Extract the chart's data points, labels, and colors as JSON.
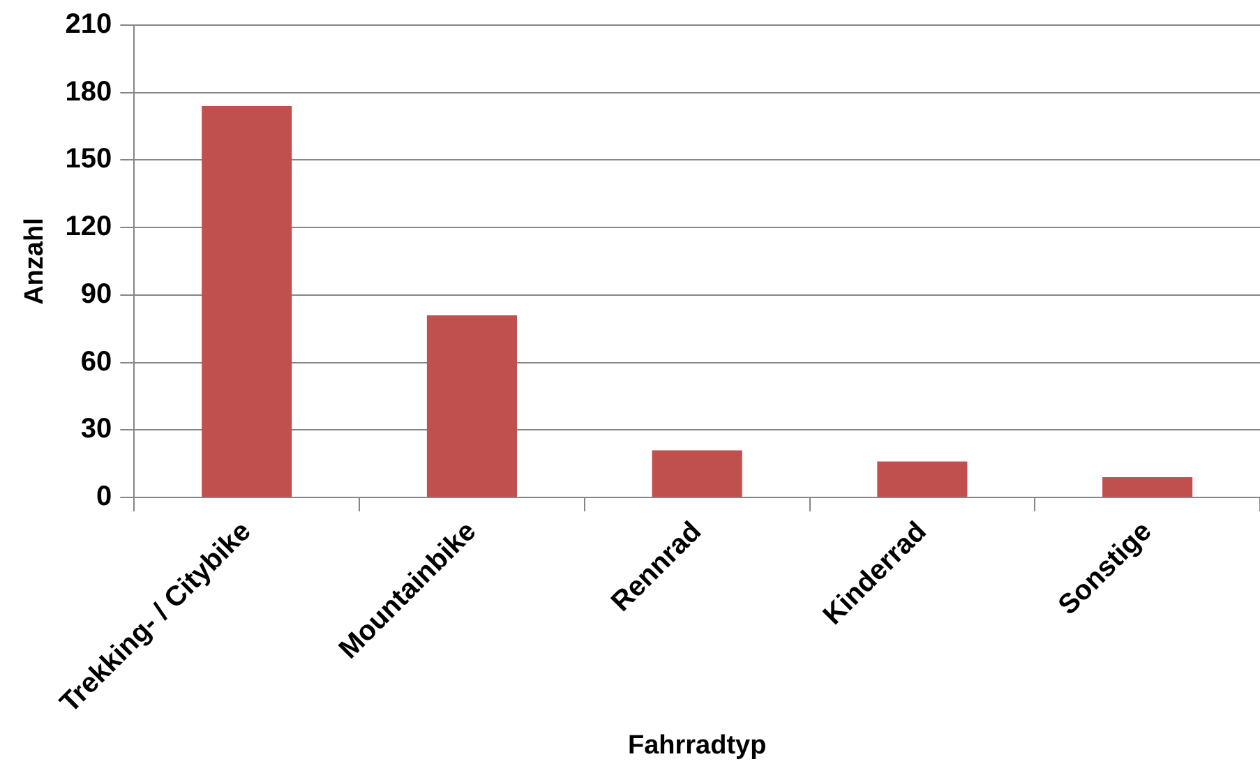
{
  "chart_data": {
    "type": "bar",
    "xlabel": "Fahrradtyp",
    "ylabel": "Anzahl",
    "categories": [
      "Trekking- / Citybike",
      "Mountainbike",
      "Rennrad",
      "Kinderrad",
      "Sonstige"
    ],
    "values": [
      174,
      81,
      21,
      16,
      9
    ],
    "color": "#c0504d",
    "ylim": [
      0,
      210
    ],
    "yticks": [
      0,
      30,
      60,
      90,
      120,
      150,
      180,
      210
    ],
    "grid": "y",
    "legend": false
  }
}
